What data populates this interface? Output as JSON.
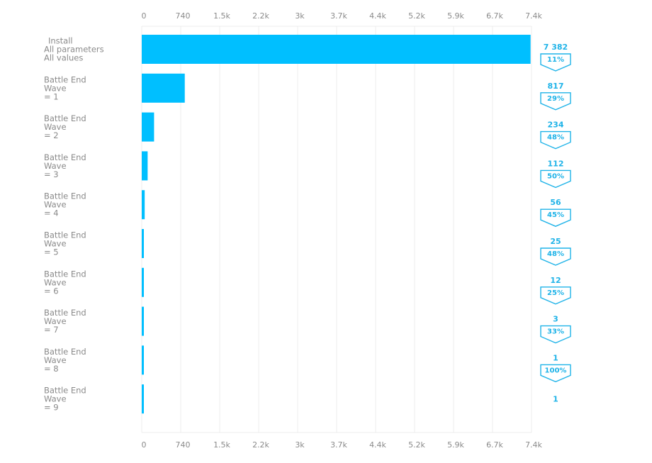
{
  "chart_data": {
    "type": "bar",
    "orientation": "horizontal",
    "categories": [
      [
        "Install",
        "All parameters",
        "All values"
      ],
      [
        "Battle  End",
        "Wave",
        "= 1"
      ],
      [
        "Battle  End",
        "Wave",
        "= 2"
      ],
      [
        "Battle  End",
        "Wave",
        "= 3"
      ],
      [
        "Battle  End",
        "Wave",
        "= 4"
      ],
      [
        "Battle  End",
        "Wave",
        "= 5"
      ],
      [
        "Battle  End",
        "Wave",
        "= 6"
      ],
      [
        "Battle  End",
        "Wave",
        "= 7"
      ],
      [
        "Battle  End",
        "Wave",
        "= 8"
      ],
      [
        "Battle  End",
        "Wave",
        "= 9"
      ]
    ],
    "values": [
      7382,
      817,
      234,
      112,
      56,
      25,
      12,
      3,
      1,
      1
    ],
    "value_labels": [
      "7 382",
      "817",
      "234",
      "112",
      "56",
      "25",
      "12",
      "3",
      "1",
      "1"
    ],
    "conversion_labels": [
      "11%",
      "29%",
      "48%",
      "50%",
      "45%",
      "48%",
      "25%",
      "33%",
      "100%"
    ],
    "xlim": [
      0,
      7400
    ],
    "xticks": [
      0,
      740,
      1480,
      2220,
      2960,
      3700,
      4440,
      5180,
      5920,
      6660,
      7400
    ],
    "xtick_labels": [
      "0",
      "740",
      "1.5k",
      "2.2k",
      "3k",
      "3.7k",
      "4.4k",
      "5.2k",
      "5.9k",
      "6.7k",
      "7.4k"
    ],
    "xaxis_position": "top-and-bottom",
    "grid": true,
    "colors": {
      "bar": "#00bfff",
      "label": "#1fb3e8",
      "grid": "#ececec",
      "axis_text": "#8a8a8a"
    }
  }
}
